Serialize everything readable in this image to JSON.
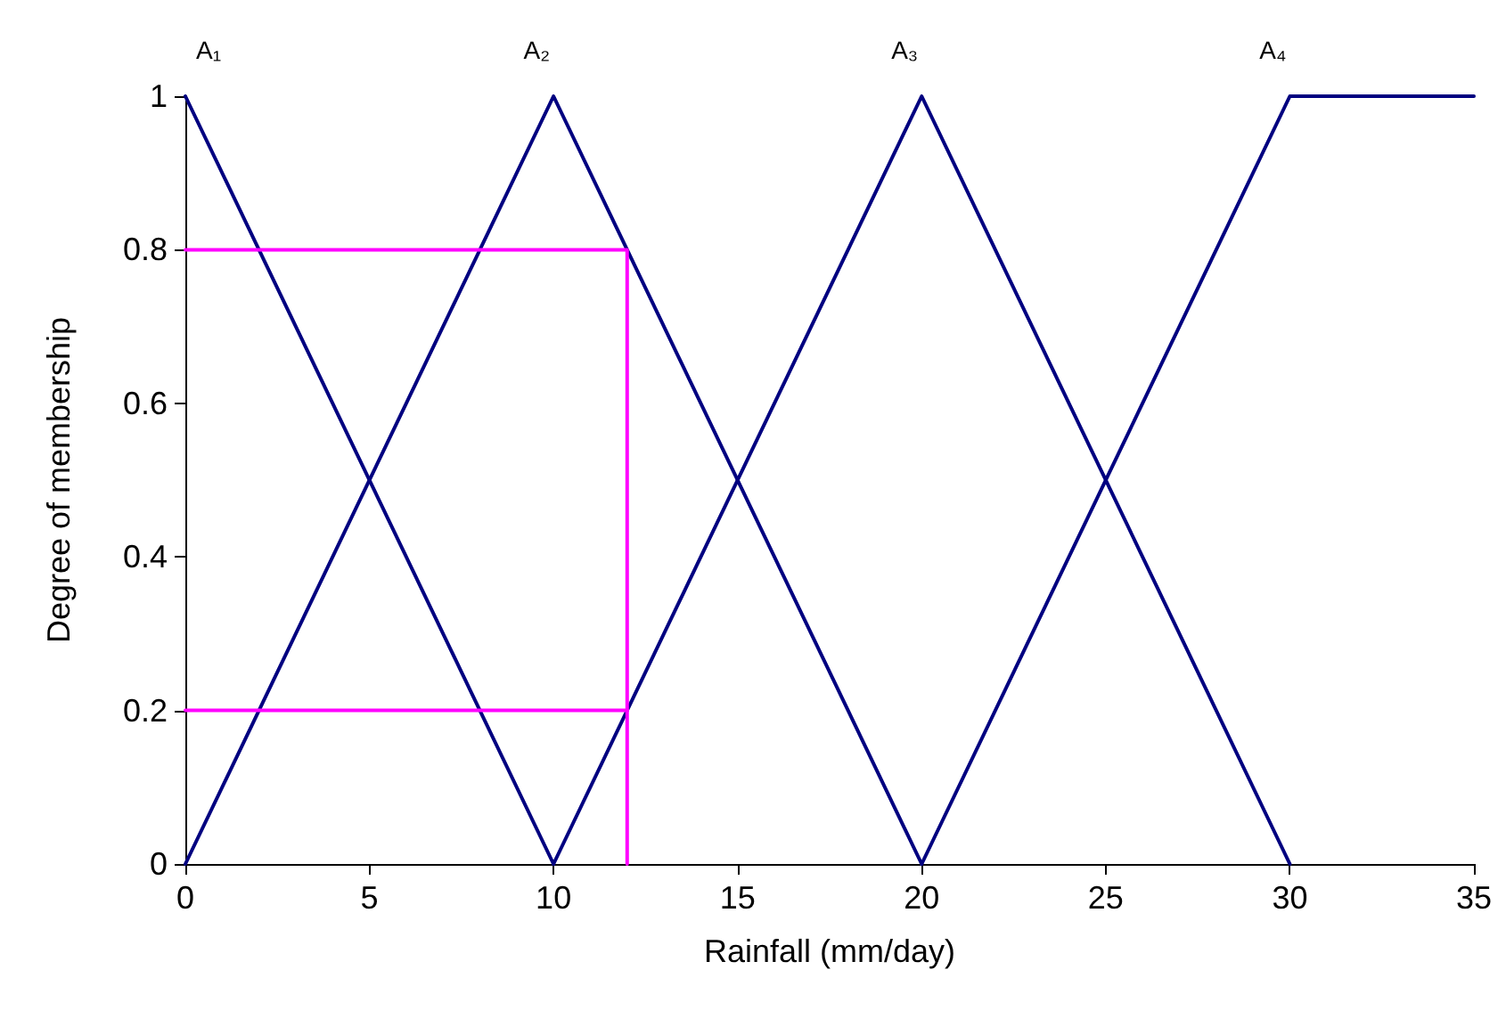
{
  "chart_data": {
    "type": "line",
    "xlabel": "Rainfall (mm/day)",
    "ylabel": "Degree of membership",
    "xlim": [
      0,
      35
    ],
    "xticks": [
      0,
      5,
      10,
      15,
      20,
      25,
      30,
      35
    ],
    "ylim": [
      0,
      1
    ],
    "yticks": [
      0,
      0.2,
      0.4,
      0.6,
      0.8,
      1
    ],
    "grid": false,
    "legend": false,
    "marker": "none",
    "line_style": "solid",
    "series": [
      {
        "name": "A₁",
        "color": "#000080",
        "x": [
          0,
          10
        ],
        "values": [
          1,
          0
        ]
      },
      {
        "name": "A₂",
        "color": "#000080",
        "x": [
          0,
          10,
          20
        ],
        "values": [
          0,
          1,
          0
        ]
      },
      {
        "name": "A₃",
        "color": "#000080",
        "x": [
          10,
          20,
          30
        ],
        "values": [
          0,
          1,
          0
        ]
      },
      {
        "name": "A₄",
        "color": "#000080",
        "x": [
          20,
          30,
          35
        ],
        "values": [
          0,
          1,
          1
        ]
      },
      {
        "color": "#ff00ff",
        "x": [
          0,
          12,
          12
        ],
        "values": [
          0.8,
          0.8,
          0
        ]
      },
      {
        "color": "#ff00ff",
        "x": [
          0,
          12
        ],
        "values": [
          0.2,
          0.2
        ]
      }
    ]
  }
}
